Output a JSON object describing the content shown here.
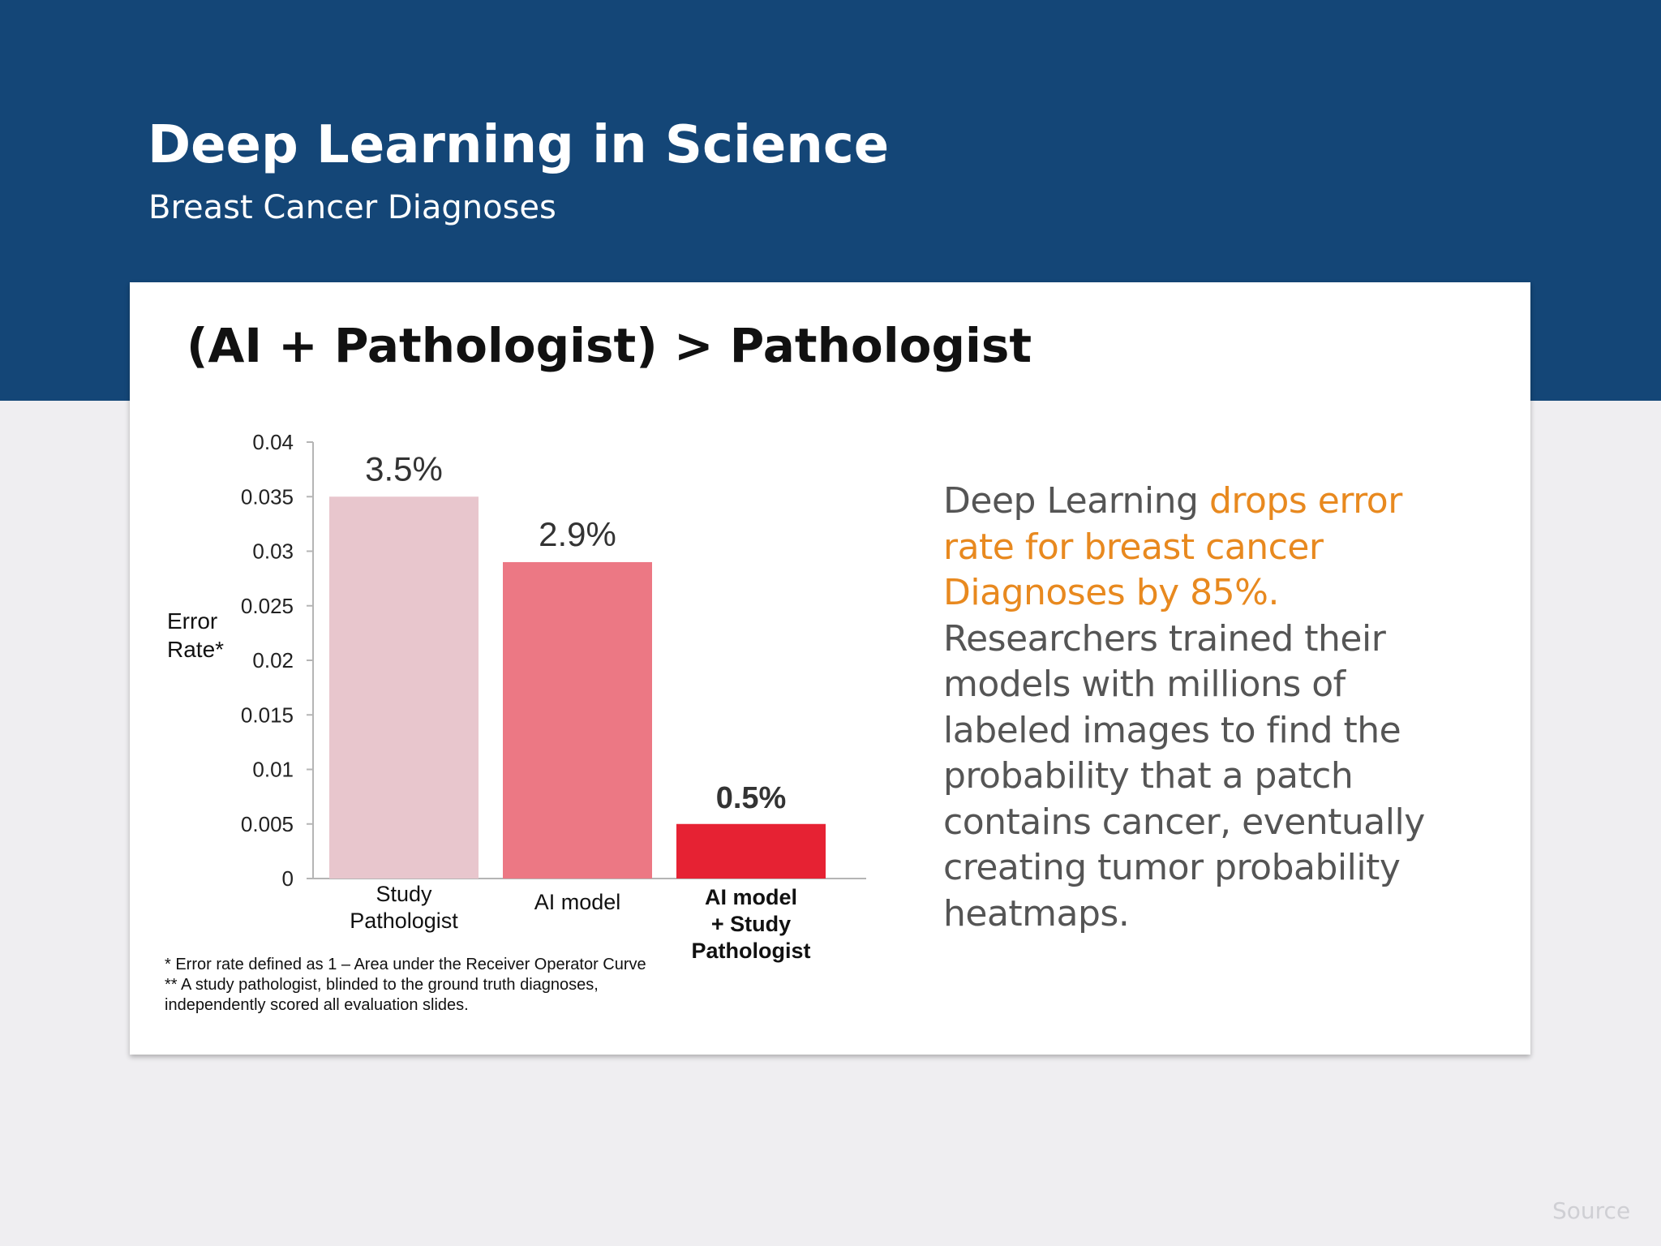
{
  "header": {
    "title": "Deep Learning in Science",
    "subtitle": "Breast Cancer Diagnoses"
  },
  "card": {
    "heading": "(AI + Pathologist) > Pathologist",
    "body": {
      "before": "Deep Learning ",
      "highlight": "drops error rate for breast cancer Diagnoses by 85%.",
      "after": " Researchers trained their models with millions of labeled images to find the probability that a patch contains cancer, eventually creating tumor probability heatmaps."
    },
    "footnotes": [
      "* Error rate defined as 1 – Area under the Receiver Operator Curve",
      "** A study pathologist, blinded to the ground truth diagnoses,",
      "independently scored all evaluation slides."
    ]
  },
  "chart_data": {
    "type": "bar",
    "title": "",
    "ylabel_lines": [
      "Error",
      "Rate*"
    ],
    "ylim": [
      0,
      0.04
    ],
    "yticks": [
      "0",
      "0.005",
      "0.01",
      "0.015",
      "0.02",
      "0.025",
      "0.03",
      "0.035",
      "0.04"
    ],
    "grid": false,
    "legend": "none",
    "bars": [
      {
        "category_lines": [
          "Study",
          "Pathologist"
        ],
        "value": 0.035,
        "data_label": "3.5%",
        "color": "#e8c6cd",
        "bold": false
      },
      {
        "category_lines": [
          "AI model"
        ],
        "value": 0.029,
        "data_label": "2.9%",
        "color": "#ec7884",
        "bold": false
      },
      {
        "category_lines": [
          "AI model",
          "+ Study",
          "Pathologist"
        ],
        "value": 0.005,
        "data_label": "0.5%",
        "color": "#e62233",
        "bold": true
      }
    ]
  },
  "footer": {
    "source_label": "Source"
  },
  "colors": {
    "header_band": "#144677",
    "highlight": "#e8891f",
    "page_bg": "#efeef1"
  }
}
